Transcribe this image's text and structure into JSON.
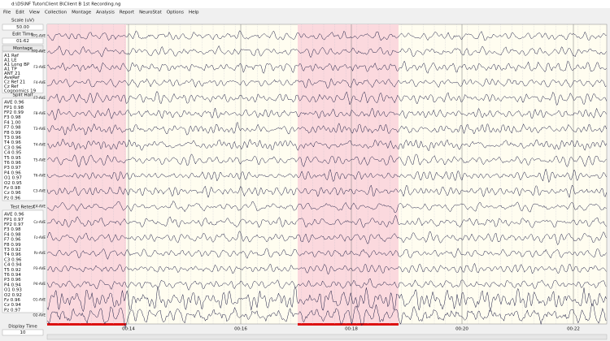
{
  "window": {
    "title": "d:\\DS\\NF Tutor\\Client B\\Client B 1st Recording.ng",
    "menu": [
      "File",
      "Edit",
      "View",
      "Collection",
      "Montage",
      "Analysis",
      "Report",
      "NeuroStat",
      "Options",
      "Help"
    ]
  },
  "sidebar": {
    "scale_label": "Scale (uV)",
    "scale_value": "50.00",
    "edit_time_label": "Edit Time",
    "edit_time_value": "01:62",
    "montage_label": "Montage",
    "montages": [
      "A1 Ref",
      "A1 LE",
      "A1 Long BP",
      "A1 TP",
      "ANT 21",
      "AveRef",
      "Cz Ref 21",
      "Cz Ref",
      "Cognomics 19"
    ],
    "split_half_label": "Split Half",
    "split_half": [
      "AVE 0.96",
      "FP1 0.98",
      "FP2 0.99",
      "F3 0.98",
      "F4 1.00",
      "F7 0.98",
      "F8 0.99",
      "T3 0.96",
      "T4 0.96",
      "C3 0.96",
      "C4 0.95",
      "T5 0.95",
      "T6 0.96",
      "P3 0.97",
      "P4 0.96",
      "O1 0.97",
      "O2 0.95",
      "Fz 0.98",
      "Cz 0.96",
      "Pz 0.96"
    ],
    "test_retest_label": "Test Retest",
    "test_retest": [
      "AVE 0.96",
      "FP1 0.97",
      "FP2 0.97",
      "F3 0.98",
      "F4 0.98",
      "F7 0.96",
      "F8 0.99",
      "T3 0.92",
      "T4 0.96",
      "C3 0.96",
      "C4 0.94",
      "T5 0.92",
      "T6 0.94",
      "P3 0.96",
      "P4 0.94",
      "O1 0.93",
      "O2 0.92",
      "Fz 0.96",
      "Cz 0.94",
      "Pz 0.97"
    ],
    "display_time_label": "Display Time",
    "display_time_value": "10"
  },
  "channels": [
    "FP1-AVE",
    "FP2-AVE",
    "F3-AVE",
    "F4-AVE",
    "F7-AVE",
    "F8-AVE",
    "T3-AVE",
    "T4-AVE",
    "T5-AVE",
    "T6-AVE",
    "C3-AVE",
    "C4-AVE",
    "Cz-AVE",
    "Fz-AVE",
    "Pz-AVE",
    "P3-AVE",
    "P4-AVE",
    "O1-AVE",
    "O2-AVE"
  ],
  "time_labels": [
    "00:14",
    "00:16",
    "00:18",
    "00:20",
    "00:22"
  ]
}
